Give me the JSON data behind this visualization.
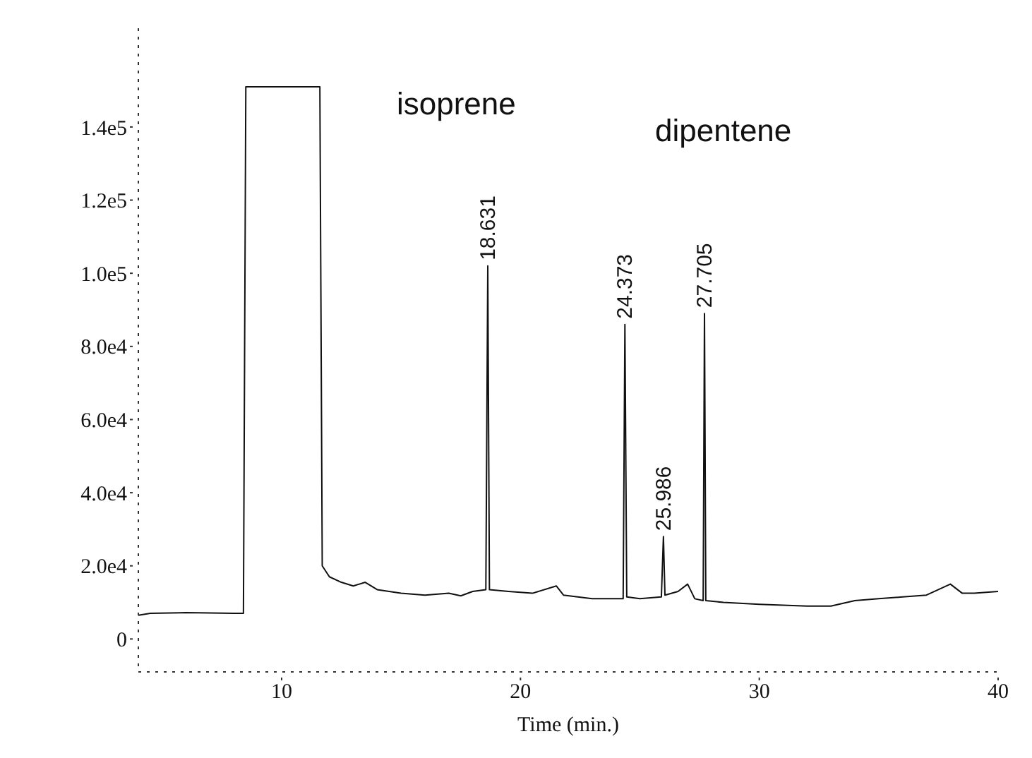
{
  "chart_data": {
    "type": "line",
    "xlabel": "Time (min.)",
    "x": [
      4.0,
      4.5,
      6,
      8.0,
      8.4,
      8.5,
      11.6,
      11.7,
      12.0,
      12.5,
      13,
      13.5,
      14,
      15,
      16,
      17,
      17.5,
      18,
      18.55,
      18.631,
      18.7,
      19.5,
      20.5,
      21.5,
      21.8,
      23,
      24.3,
      24.373,
      24.45,
      25,
      25.9,
      25.986,
      26.05,
      26.6,
      27,
      27.3,
      27.65,
      27.705,
      27.76,
      28.5,
      30,
      32,
      33,
      34,
      35,
      36,
      37,
      38,
      38.5,
      39,
      40
    ],
    "series": [
      {
        "color": "#111111",
        "values": [
          6500,
          7000,
          7200,
          7000,
          7000,
          151000,
          151000,
          20000,
          17000,
          15500,
          14500,
          15500,
          13500,
          12500,
          12000,
          12500,
          11800,
          13000,
          13500,
          102000,
          13500,
          13000,
          12500,
          14500,
          12000,
          11000,
          11000,
          86000,
          11500,
          11000,
          11500,
          28000,
          12000,
          13000,
          15000,
          11000,
          10500,
          89000,
          10500,
          10000,
          9500,
          9000,
          9000,
          10500,
          11000,
          11500,
          12000,
          15000,
          12500,
          12500,
          13000
        ]
      }
    ],
    "xlim": [
      4,
      40
    ],
    "xticks": [
      10,
      20,
      30,
      40
    ],
    "ylim": [
      -9000,
      167000
    ],
    "yticks": [
      0,
      {
        "value": 20000,
        "label": "2.0e4"
      },
      {
        "value": 40000,
        "label": "4.0e4"
      },
      {
        "value": 60000,
        "label": "6.0e4"
      },
      {
        "value": 80000,
        "label": "8.0e4"
      },
      {
        "value": 100000,
        "label": "1.0e5"
      },
      {
        "value": 120000,
        "label": "1.2e5"
      },
      {
        "value": 140000,
        "label": "1.4e5"
      }
    ],
    "grid": false,
    "marker": "none",
    "line_style": "solid",
    "annotations": [
      "isoprene",
      "dipentene",
      {
        "text": "18.631",
        "x": 18.631,
        "y": 102000
      },
      {
        "text": "24.373",
        "x": 24.373,
        "y": 86000
      },
      {
        "text": "25.986",
        "x": 25.986,
        "y": 28000
      },
      {
        "text": "27.705",
        "x": 27.705,
        "y": 89000
      }
    ]
  }
}
